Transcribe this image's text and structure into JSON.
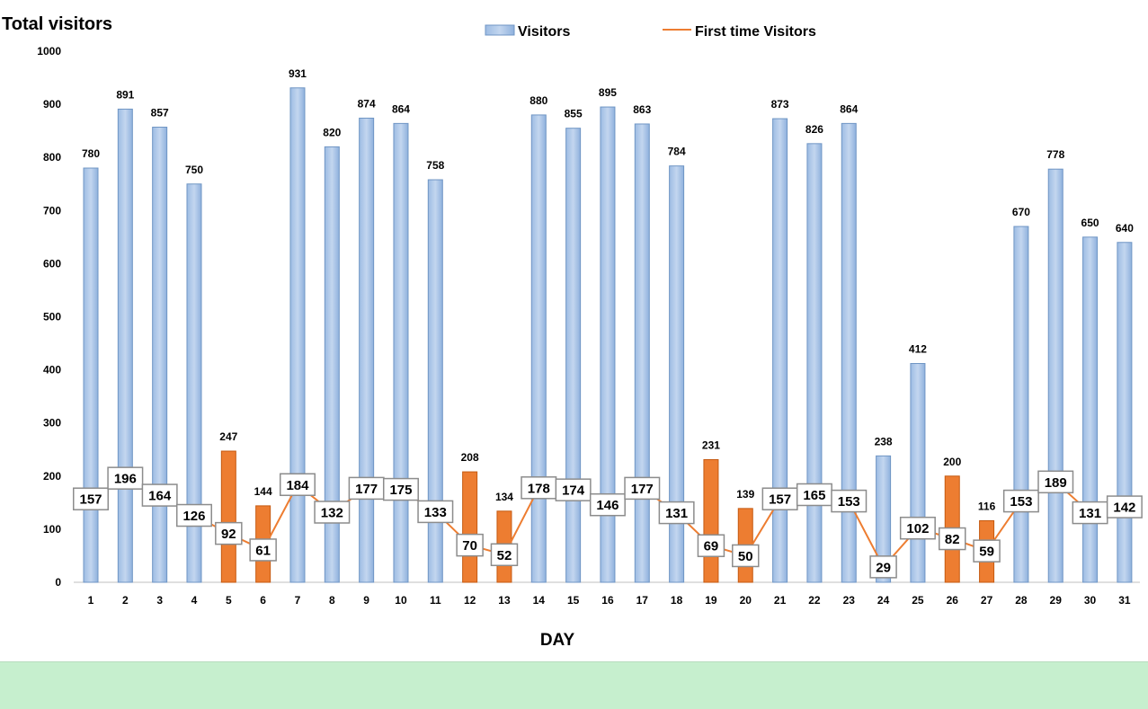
{
  "chart_data": {
    "type": "bar",
    "title": "Total visitors",
    "xlabel": "DAY",
    "ylabel": "",
    "ylim": [
      0,
      1000
    ],
    "yticks": [
      0,
      100,
      200,
      300,
      400,
      500,
      600,
      700,
      800,
      900,
      1000
    ],
    "categories": [
      "1",
      "2",
      "3",
      "4",
      "5",
      "6",
      "7",
      "8",
      "9",
      "10",
      "11",
      "12",
      "13",
      "14",
      "15",
      "16",
      "17",
      "18",
      "19",
      "20",
      "21",
      "22",
      "23",
      "24",
      "25",
      "26",
      "27",
      "28",
      "29",
      "30",
      "31"
    ],
    "legend": {
      "position": "top-center",
      "bar_entry": "Visitors",
      "line_entry": "First time Visitors"
    },
    "series": [
      {
        "name": "Visitors",
        "kind": "bar",
        "values": [
          780,
          891,
          857,
          750,
          247,
          144,
          931,
          820,
          874,
          864,
          758,
          208,
          134,
          880,
          855,
          895,
          863,
          784,
          231,
          139,
          873,
          826,
          864,
          238,
          412,
          200,
          116,
          670,
          778,
          650,
          640
        ]
      },
      {
        "name": "First time Visitors",
        "kind": "line",
        "values": [
          157,
          196,
          164,
          126,
          92,
          61,
          184,
          132,
          177,
          175,
          133,
          70,
          52,
          178,
          174,
          146,
          177,
          131,
          69,
          50,
          157,
          165,
          153,
          29,
          102,
          82,
          59,
          153,
          189,
          131,
          142
        ]
      }
    ],
    "highlighted_days": [
      "5",
      "6",
      "12",
      "13",
      "19",
      "20",
      "26",
      "27"
    ],
    "grid": false,
    "colors": {
      "bar": "#a7c4e7",
      "bar_edge": "#6f95c4",
      "bar_highlight": "#ed7d31",
      "bar_highlight_edge": "#c55a11",
      "line": "#ed7d31",
      "footer": "#c6efce"
    }
  }
}
